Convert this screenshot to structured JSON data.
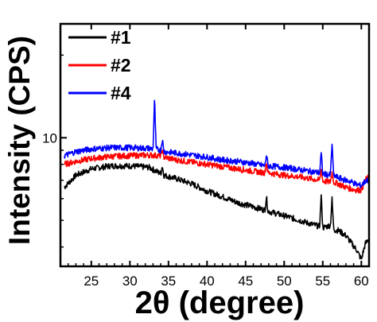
{
  "chart_data": {
    "type": "line",
    "xlabel": "2θ (degree)",
    "ylabel": "Intensity (CPS)",
    "xlim": [
      21,
      61
    ],
    "ylim": [
      3.4,
      26
    ],
    "yscale": "log",
    "x_ticks": [
      25,
      30,
      35,
      40,
      45,
      50,
      55,
      60
    ],
    "y_ticks_labeled": [
      10
    ],
    "grid": false,
    "legend_position": "top-left",
    "series": [
      {
        "name": "#1",
        "color": "#000000",
        "x": [
          21.5,
          23,
          25,
          27.5,
          30,
          32.5,
          34,
          34.2,
          34.4,
          36,
          38,
          40,
          42,
          44,
          46,
          47.5,
          47.7,
          47.9,
          50,
          52,
          54,
          54.6,
          54.8,
          55,
          56,
          56.2,
          56.4,
          56.6,
          57,
          58,
          58.8,
          59.4,
          60,
          60.5,
          61
        ],
        "y": [
          6.6,
          7.3,
          7.7,
          7.9,
          7.9,
          7.8,
          7.4,
          7.9,
          7.3,
          7.1,
          6.8,
          6.4,
          6.1,
          5.8,
          5.6,
          5.45,
          6.1,
          5.4,
          5.2,
          5.0,
          4.8,
          4.75,
          6.2,
          4.7,
          4.8,
          6.0,
          4.7,
          4.6,
          4.6,
          4.4,
          4.1,
          3.9,
          3.6,
          4.1,
          4.3
        ]
      },
      {
        "name": "#2",
        "color": "#ff0000",
        "x": [
          21.5,
          23,
          25,
          27.5,
          30,
          32.5,
          34,
          34.2,
          34.4,
          36,
          38,
          40,
          42,
          44,
          46,
          47.5,
          47.7,
          47.9,
          50,
          52,
          54,
          54.6,
          54.8,
          55,
          56,
          56.2,
          56.4,
          56.6,
          57,
          58,
          58.8,
          59.4,
          60,
          60.5,
          61
        ],
        "y": [
          8.0,
          8.2,
          8.4,
          8.55,
          8.6,
          8.65,
          8.6,
          9.0,
          8.5,
          8.3,
          8.15,
          8.0,
          7.85,
          7.7,
          7.55,
          7.45,
          8.2,
          7.45,
          7.3,
          7.2,
          7.05,
          7.0,
          7.7,
          6.95,
          6.9,
          7.5,
          6.9,
          6.85,
          6.8,
          6.6,
          6.5,
          6.45,
          6.45,
          7.0,
          7.2
        ]
      },
      {
        "name": "#4",
        "color": "#0000ff",
        "x": [
          21.5,
          23,
          25,
          27.5,
          30,
          32.5,
          33,
          33.2,
          33.4,
          34,
          34.2,
          34.4,
          36,
          38,
          40,
          42,
          44,
          46,
          47.5,
          47.7,
          47.9,
          50,
          52,
          54,
          54.6,
          54.8,
          55,
          56,
          56.2,
          56.4,
          56.6,
          57,
          58,
          58.8,
          59.4,
          60,
          60.5,
          61
        ],
        "y": [
          8.6,
          8.9,
          9.1,
          9.2,
          9.2,
          9.15,
          9.1,
          14.0,
          9.1,
          9.0,
          9.9,
          8.9,
          8.8,
          8.65,
          8.5,
          8.3,
          8.2,
          8.05,
          7.9,
          8.7,
          7.9,
          7.8,
          7.65,
          7.5,
          7.45,
          8.8,
          7.4,
          7.3,
          9.6,
          7.3,
          7.25,
          7.15,
          7.0,
          6.9,
          6.75,
          6.7,
          6.95,
          7.05
        ]
      }
    ]
  }
}
